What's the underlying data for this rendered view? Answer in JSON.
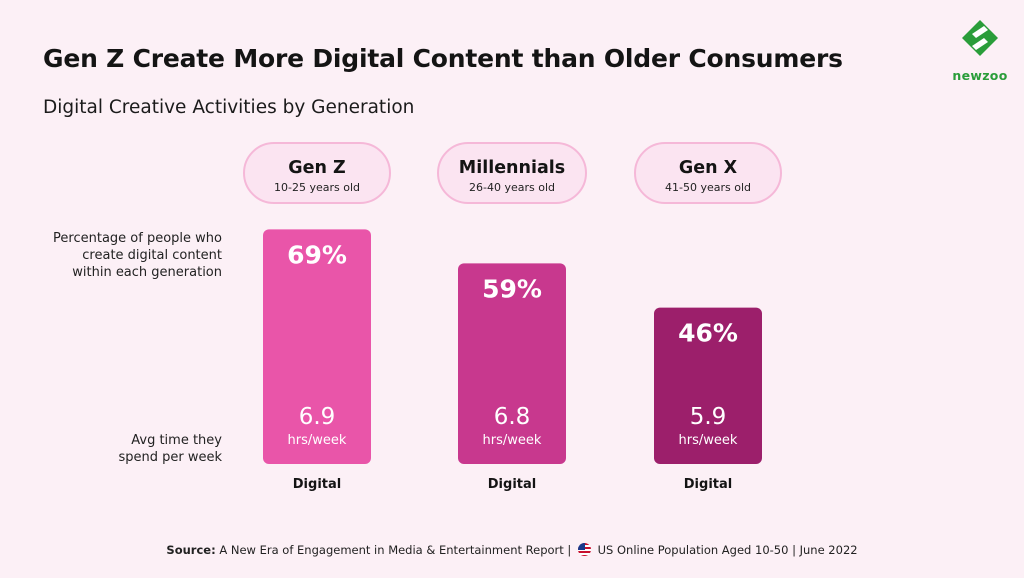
{
  "header": {
    "title": "Gen Z Create More Digital Content than Older Consumers",
    "subtitle": "Digital Creative Activities by Generation"
  },
  "logo": {
    "name": "newzoo",
    "icon": "newzoo-logo-icon",
    "color": "#2a9d3a"
  },
  "groups": [
    {
      "name": "Gen Z",
      "age": "10-25 years old"
    },
    {
      "name": "Millennials",
      "age": "26-40 years old"
    },
    {
      "name": "Gen X",
      "age": "41-50 years old"
    }
  ],
  "row_labels": {
    "percentage": "Percentage of people who create digital content within each generation",
    "time": "Avg time they spend per week"
  },
  "chart_data": {
    "type": "bar",
    "categories": [
      "Gen Z",
      "Millennials",
      "Gen X"
    ],
    "values": [
      69,
      59,
      46
    ],
    "value_labels": [
      "69%",
      "59%",
      "46%"
    ],
    "hours": [
      6.9,
      6.8,
      5.9
    ],
    "hours_labels": [
      "6.9",
      "6.8",
      "5.9"
    ],
    "hours_unit": "hrs/week",
    "category_label": "Digital",
    "colors": [
      "#e955a9",
      "#c8388e",
      "#9c1f6b"
    ]
  },
  "footer": {
    "source_label": "Source:",
    "report": "A New Era of Engagement in Media & Entertainment Report |",
    "flag_icon": "us-flag-icon",
    "details": "US Online Population Aged 10-50 | June 2022"
  }
}
